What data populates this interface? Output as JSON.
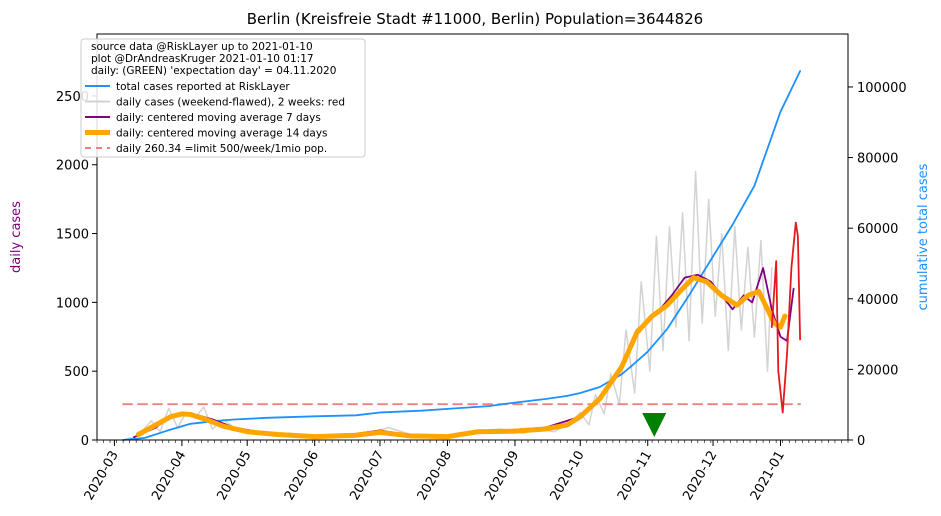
{
  "chart_data": {
    "type": "line",
    "title": "Berlin (Kreisfreie Stadt #11000, Berlin) Population=3644826",
    "ylabel_left": "daily cases",
    "ylabel_right": "cumulative total cases",
    "ylabel_left_color": "#800080",
    "ylabel_right_color": "#1e90ff",
    "ylim_left": [
      0,
      2950
    ],
    "ylim_right": [
      0,
      115000
    ],
    "yticks_left": [
      0,
      500,
      1000,
      1500,
      2000,
      2500
    ],
    "yticks_right": [
      0,
      20000,
      40000,
      60000,
      80000,
      100000
    ],
    "xlim": [
      "2020-02-22",
      "2021-02-01"
    ],
    "xticks": [
      "2020-03",
      "2020-04",
      "2020-05",
      "2020-06",
      "2020-07",
      "2020-08",
      "2020-09",
      "2020-10",
      "2020-11",
      "2020-12",
      "2021-01"
    ],
    "notes": [
      "source data @RiskLayer up to 2021-01-10",
      "plot @DrAndreasKruger 2021-01-10 01:17",
      "daily: (GREEN) 'expectation day' = 04.11.2020"
    ],
    "expectation_day": "2020-11-04",
    "limit_value": 260.34,
    "legend_location": "upper-left",
    "series": [
      {
        "name": "total cases reported at RiskLayer",
        "axis": "right",
        "color": "#1e90ff",
        "x": [
          "2020-03-05",
          "2020-03-15",
          "2020-03-25",
          "2020-04-05",
          "2020-04-15",
          "2020-04-25",
          "2020-05-10",
          "2020-06-01",
          "2020-06-20",
          "2020-07-01",
          "2020-07-20",
          "2020-08-01",
          "2020-08-20",
          "2020-09-01",
          "2020-09-15",
          "2020-09-25",
          "2020-10-01",
          "2020-10-10",
          "2020-10-20",
          "2020-10-25",
          "2020-11-01",
          "2020-11-10",
          "2020-11-20",
          "2020-12-01",
          "2020-12-10",
          "2020-12-20",
          "2021-01-01",
          "2021-01-10"
        ],
        "y": [
          0,
          600,
          2600,
          4600,
          5300,
          5800,
          6300,
          6700,
          7000,
          7800,
          8300,
          8800,
          9600,
          10600,
          11600,
          12500,
          13300,
          15000,
          18600,
          21200,
          25000,
          31500,
          41000,
          52000,
          61000,
          72000,
          93000,
          104500
        ]
      },
      {
        "name": "daily cases (weekend-flawed), 2 weeks: red",
        "axis": "left",
        "color": "#d3d3d3",
        "x": [
          "2020-03-05",
          "2020-03-12",
          "2020-03-18",
          "2020-03-22",
          "2020-03-26",
          "2020-03-30",
          "2020-04-03",
          "2020-04-07",
          "2020-04-11",
          "2020-04-15",
          "2020-04-20",
          "2020-04-25",
          "2020-05-01",
          "2020-05-10",
          "2020-05-20",
          "2020-06-01",
          "2020-06-10",
          "2020-06-20",
          "2020-06-28",
          "2020-07-05",
          "2020-07-15",
          "2020-07-25",
          "2020-08-05",
          "2020-08-15",
          "2020-08-25",
          "2020-09-05",
          "2020-09-12",
          "2020-09-19",
          "2020-09-26",
          "2020-10-01",
          "2020-10-05",
          "2020-10-08",
          "2020-10-12",
          "2020-10-15",
          "2020-10-19",
          "2020-10-22",
          "2020-10-26",
          "2020-10-29",
          "2020-11-02",
          "2020-11-05",
          "2020-11-08",
          "2020-11-11",
          "2020-11-14",
          "2020-11-17",
          "2020-11-20",
          "2020-11-23",
          "2020-11-26",
          "2020-11-29",
          "2020-12-02",
          "2020-12-05",
          "2020-12-08",
          "2020-12-11",
          "2020-12-14",
          "2020-12-17",
          "2020-12-20",
          "2020-12-23",
          "2020-12-26",
          "2020-12-28"
        ],
        "y": [
          0,
          30,
          140,
          60,
          230,
          90,
          200,
          160,
          240,
          80,
          150,
          90,
          70,
          40,
          50,
          30,
          30,
          40,
          60,
          90,
          40,
          25,
          40,
          60,
          80,
          50,
          80,
          60,
          120,
          200,
          110,
          330,
          190,
          480,
          260,
          800,
          340,
          1150,
          500,
          1480,
          650,
          1550,
          820,
          1650,
          720,
          1950,
          850,
          1750,
          900,
          1500,
          650,
          1550,
          800,
          1400,
          750,
          1450,
          500,
          1250
        ]
      },
      {
        "name": "daily: centered moving average 7 days",
        "axis": "left",
        "color": "#800080",
        "x": [
          "2020-03-10",
          "2020-03-20",
          "2020-03-27",
          "2020-04-01",
          "2020-04-06",
          "2020-04-15",
          "2020-04-25",
          "2020-05-10",
          "2020-06-01",
          "2020-06-20",
          "2020-07-01",
          "2020-07-15",
          "2020-07-30",
          "2020-08-15",
          "2020-09-01",
          "2020-09-15",
          "2020-10-01",
          "2020-10-10",
          "2020-10-20",
          "2020-10-27",
          "2020-11-05",
          "2020-11-12",
          "2020-11-18",
          "2020-11-24",
          "2020-11-30",
          "2020-12-05",
          "2020-12-10",
          "2020-12-15",
          "2020-12-19",
          "2020-12-24",
          "2020-12-28",
          "2021-01-01",
          "2021-01-04",
          "2021-01-07"
        ],
        "y": [
          20,
          90,
          180,
          200,
          190,
          150,
          90,
          50,
          30,
          45,
          70,
          30,
          25,
          60,
          75,
          90,
          170,
          300,
          550,
          800,
          920,
          1050,
          1180,
          1200,
          1150,
          1050,
          950,
          1050,
          1000,
          1250,
          950,
          750,
          720,
          1100
        ]
      },
      {
        "name": "daily: centered moving average 14 days",
        "axis": "left",
        "color": "#ffa500",
        "x": [
          "2020-03-12",
          "2020-03-20",
          "2020-03-27",
          "2020-04-01",
          "2020-04-05",
          "2020-04-12",
          "2020-04-20",
          "2020-05-01",
          "2020-05-15",
          "2020-06-01",
          "2020-06-20",
          "2020-07-01",
          "2020-07-15",
          "2020-08-01",
          "2020-08-15",
          "2020-09-01",
          "2020-09-15",
          "2020-09-25",
          "2020-10-01",
          "2020-10-10",
          "2020-10-20",
          "2020-10-27",
          "2020-11-03",
          "2020-11-10",
          "2020-11-17",
          "2020-11-22",
          "2020-11-28",
          "2020-12-05",
          "2020-12-12",
          "2020-12-17",
          "2020-12-22",
          "2020-12-26",
          "2020-12-29",
          "2021-01-01",
          "2021-01-03"
        ],
        "y": [
          40,
          110,
          170,
          190,
          185,
          150,
          100,
          60,
          40,
          25,
          35,
          55,
          30,
          25,
          60,
          65,
          80,
          110,
          170,
          300,
          530,
          780,
          900,
          980,
          1100,
          1180,
          1150,
          1050,
          980,
          1050,
          1080,
          950,
          850,
          820,
          900
        ]
      },
      {
        "name": "daily (last 2 weeks, red)",
        "axis": "left",
        "color": "#e41a1c",
        "x": [
          "2020-12-28",
          "2020-12-30",
          "2020-12-31",
          "2021-01-02",
          "2021-01-04",
          "2021-01-06",
          "2021-01-08",
          "2021-01-09",
          "2021-01-10"
        ],
        "y": [
          820,
          1300,
          500,
          200,
          620,
          1250,
          1580,
          1480,
          730
        ]
      },
      {
        "name": "daily 260.34 =limit 500/week/1mio pop.",
        "axis": "left",
        "color": "#f08080",
        "dashed": true,
        "x": [
          "2020-03-05",
          "2021-01-10"
        ],
        "y": [
          260.34,
          260.34
        ]
      }
    ]
  },
  "legend": {
    "entries": [
      {
        "label": "total cases reported at RiskLayer",
        "color": "#1e90ff",
        "style": "solid",
        "width": 2
      },
      {
        "label": "daily cases (weekend-flawed), 2 weeks: red",
        "color": "#d3d3d3",
        "style": "solid",
        "width": 2
      },
      {
        "label": "daily: centered moving average 7 days",
        "color": "#800080",
        "style": "solid",
        "width": 2
      },
      {
        "label": "daily: centered moving average 14 days",
        "color": "#ffa500",
        "style": "solid",
        "width": 5
      },
      {
        "label": "daily 260.34 =limit 500/week/1mio pop.",
        "color": "#f08080",
        "style": "dashed",
        "width": 2
      }
    ]
  }
}
